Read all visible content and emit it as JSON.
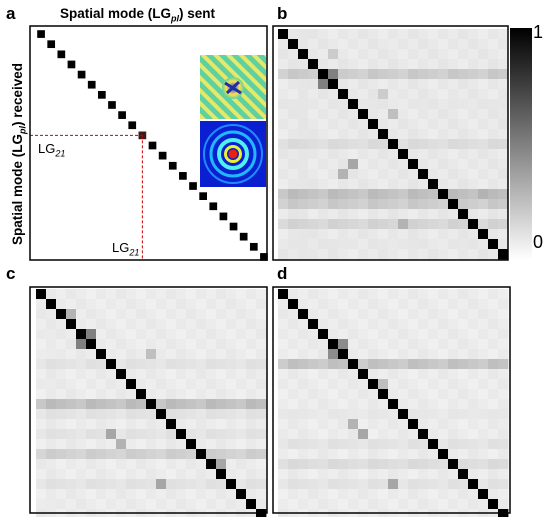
{
  "figure": {
    "panel_letters": [
      "a",
      "b",
      "c",
      "d"
    ],
    "xaxis_title_prefix": "Spatial mode (LG",
    "xaxis_title_sub": "pl",
    "xaxis_title_suffix": ") sent",
    "yaxis_title_prefix": "Spatial mode (LG",
    "yaxis_title_sub": "pl",
    "yaxis_title_suffix": ") received",
    "mode_label_prefix": "LG",
    "mode_label_sub": "21",
    "colorbar_max_label": "1",
    "colorbar_min_label": "0",
    "colors": {
      "cell_max": "#000000",
      "cell_min": "#ffffff",
      "marker_line": "#cc0000",
      "frame": "#000000"
    }
  },
  "chart_data": [
    {
      "type": "heatmap",
      "panel": "a",
      "size": 23,
      "description": "ideal identity crosstalk matrix",
      "highlight": {
        "row": 10,
        "col": 10,
        "label": "LG21"
      },
      "diagonal": 1.0,
      "background": 0.0,
      "rows": [],
      "cols": [],
      "spots": []
    },
    {
      "type": "heatmap",
      "panel": "b",
      "size": 23,
      "diagonal": 1.0,
      "background": 0.07,
      "rows": [
        [
          4,
          0.22
        ],
        [
          7,
          0.1
        ],
        [
          11,
          0.15
        ],
        [
          16,
          0.27
        ],
        [
          17,
          0.22
        ],
        [
          19,
          0.18
        ],
        [
          21,
          0.1
        ]
      ],
      "cols": [
        [
          2,
          0.1
        ],
        [
          11,
          0.08
        ]
      ],
      "spots": [
        [
          1,
          1,
          0.55
        ],
        [
          4,
          4,
          0.75
        ],
        [
          5,
          5,
          0.85
        ],
        [
          4,
          5,
          0.5
        ],
        [
          5,
          4,
          0.5
        ],
        [
          6,
          6,
          0.6
        ],
        [
          9,
          9,
          0.55
        ],
        [
          14,
          14,
          0.55
        ],
        [
          18,
          18,
          0.55
        ],
        [
          20,
          20,
          0.5
        ],
        [
          21,
          21,
          0.6
        ],
        [
          19,
          12,
          0.3
        ],
        [
          13,
          7,
          0.35
        ],
        [
          14,
          6,
          0.3
        ],
        [
          8,
          11,
          0.25
        ],
        [
          6,
          10,
          0.2
        ],
        [
          16,
          20,
          0.3
        ],
        [
          2,
          5,
          0.2
        ]
      ]
    },
    {
      "type": "heatmap",
      "panel": "c",
      "size": 23,
      "diagonal": 1.0,
      "background": 0.06,
      "rows": [
        [
          7,
          0.12
        ],
        [
          11,
          0.27
        ],
        [
          12,
          0.12
        ],
        [
          14,
          0.12
        ],
        [
          16,
          0.2
        ],
        [
          19,
          0.12
        ]
      ],
      "cols": [
        [
          1,
          0.08
        ],
        [
          9,
          0.06
        ]
      ],
      "spots": [
        [
          4,
          4,
          0.7
        ],
        [
          5,
          5,
          0.85
        ],
        [
          4,
          5,
          0.5
        ],
        [
          5,
          4,
          0.5
        ],
        [
          6,
          6,
          0.5
        ],
        [
          15,
          15,
          0.55
        ],
        [
          16,
          16,
          0.7
        ],
        [
          17,
          17,
          0.55
        ],
        [
          19,
          19,
          0.55
        ],
        [
          20,
          20,
          0.6
        ],
        [
          21,
          21,
          0.7
        ],
        [
          14,
          7,
          0.35
        ],
        [
          19,
          12,
          0.35
        ],
        [
          15,
          8,
          0.3
        ],
        [
          6,
          11,
          0.25
        ],
        [
          17,
          18,
          0.35
        ],
        [
          2,
          3,
          0.3
        ]
      ]
    },
    {
      "type": "heatmap",
      "panel": "d",
      "size": 23,
      "diagonal": 1.0,
      "background": 0.06,
      "rows": [
        [
          7,
          0.25
        ],
        [
          12,
          0.1
        ],
        [
          15,
          0.12
        ],
        [
          17,
          0.15
        ],
        [
          19,
          0.12
        ]
      ],
      "cols": [
        [
          2,
          0.06
        ]
      ],
      "spots": [
        [
          5,
          5,
          0.75
        ],
        [
          6,
          6,
          0.6
        ],
        [
          5,
          6,
          0.45
        ],
        [
          6,
          5,
          0.45
        ],
        [
          14,
          14,
          0.55
        ],
        [
          15,
          15,
          0.65
        ],
        [
          16,
          16,
          0.55
        ],
        [
          20,
          20,
          0.5
        ],
        [
          14,
          8,
          0.35
        ],
        [
          13,
          7,
          0.3
        ],
        [
          19,
          11,
          0.35
        ],
        [
          9,
          10,
          0.25
        ],
        [
          3,
          3,
          0.4
        ]
      ]
    }
  ]
}
